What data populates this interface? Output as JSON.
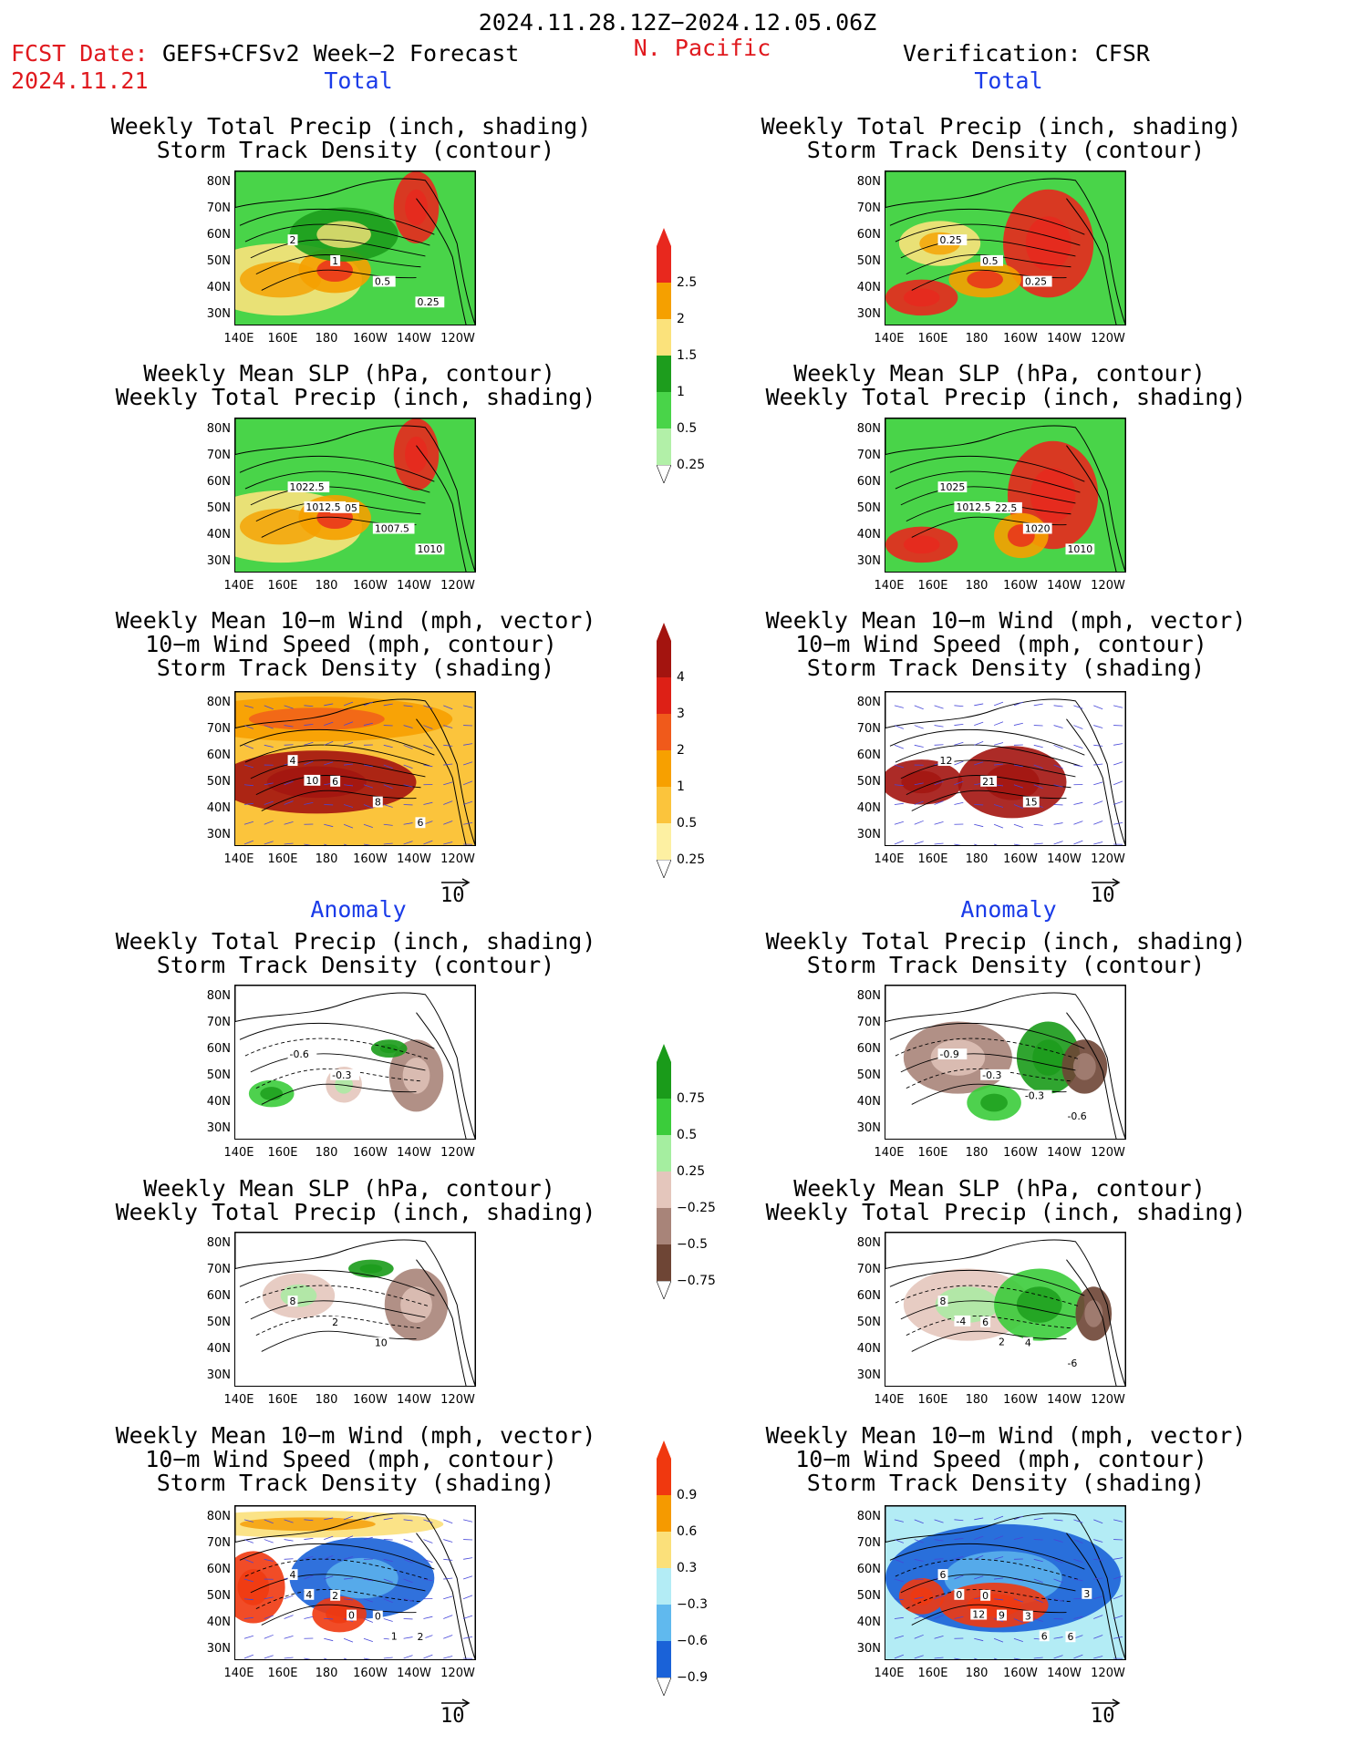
{
  "header": {
    "date_range": "2024.11.28.12Z−2024.12.05.06Z",
    "fcst_label": "FCST Date:",
    "fcst_model": "GEFS+CFSv2 Week−2 Forecast",
    "fcst_date": "2024.11.21",
    "region": "N. Pacific",
    "verification": "Verification: CFSR"
  },
  "sections": {
    "total": "Total",
    "anomaly": "Anomaly"
  },
  "titles": {
    "precip_storm": [
      "Weekly Total Precip (inch, shading)",
      "Storm Track Density (contour)"
    ],
    "slp_precip": [
      "Weekly Mean SLP (hPa, contour)",
      "Weekly Total Precip (inch, shading)"
    ],
    "wind_storm": [
      "Weekly Mean 10−m Wind (mph, vector)",
      "10−m Wind Speed (mph, contour)",
      "Storm Track Density (shading)"
    ]
  },
  "axes": {
    "lat": [
      "80N",
      "70N",
      "60N",
      "50N",
      "40N",
      "30N"
    ],
    "lon": [
      "140E",
      "160E",
      "180",
      "160W",
      "140W",
      "120W"
    ]
  },
  "vector_ref": "10",
  "colorbars": {
    "precip_total": {
      "labels": [
        "2.5",
        "2",
        "1.5",
        "1",
        "0.5",
        "0.25"
      ],
      "colors": [
        "#e8281e",
        "#f5a000",
        "#fbe27b",
        "#1d9d1d",
        "#49d449",
        "#b2f0a8"
      ]
    },
    "storm_total": {
      "labels": [
        "4",
        "3",
        "2",
        "1",
        "0.5",
        "0.25"
      ],
      "colors": [
        "#a3140f",
        "#dd2016",
        "#f05a1b",
        "#f7a000",
        "#fbc43c",
        "#fdf0a2"
      ]
    },
    "precip_anom": {
      "labels": [
        "0.75",
        "0.5",
        "0.25",
        "−0.25",
        "−0.5",
        "−0.75"
      ],
      "colors": [
        "#1a9b1a",
        "#3bcc3b",
        "#a5eea0",
        "#e4c6bc",
        "#a88479",
        "#6e4535"
      ]
    },
    "storm_anom": {
      "labels": [
        "0.9",
        "0.6",
        "0.3",
        "−0.3",
        "−0.6",
        "−0.9"
      ],
      "colors": [
        "#f0380f",
        "#f59a00",
        "#fbe07a",
        "#b3ecf5",
        "#60b9ee",
        "#1a62d8"
      ]
    }
  },
  "contour_labels": {
    "fc_total_precip": [
      "2",
      "1",
      "0.5",
      "0.25"
    ],
    "obs_total_precip": [
      "0.25",
      "0.5",
      "0.25"
    ],
    "fc_total_slp": [
      "1022.5",
      "1005",
      "1007.5",
      "1010",
      "1012.5"
    ],
    "obs_total_slp": [
      "1025",
      "1022.5",
      "1020",
      "1010",
      "1012.5"
    ],
    "fc_total_wind": [
      "4",
      "6",
      "8",
      "6",
      "10"
    ],
    "obs_total_wind": [
      "12",
      "21",
      "15"
    ],
    "fc_anom_precip": [
      "-0.6",
      "-0.3"
    ],
    "obs_anom_precip": [
      "-0.9",
      "-0.3",
      "-0.3",
      "-0.6"
    ],
    "fc_anom_slp": [
      "8",
      "2",
      "10"
    ],
    "obs_anom_slp": [
      "8",
      "6",
      "4",
      "-6",
      "-4",
      "2"
    ],
    "fc_anom_wind": [
      "4",
      "2",
      "0",
      "2",
      "4",
      "0",
      "1"
    ],
    "obs_anom_wind": [
      "6",
      "0",
      "3",
      "6",
      "0",
      "9",
      "6",
      "3",
      "12"
    ]
  }
}
